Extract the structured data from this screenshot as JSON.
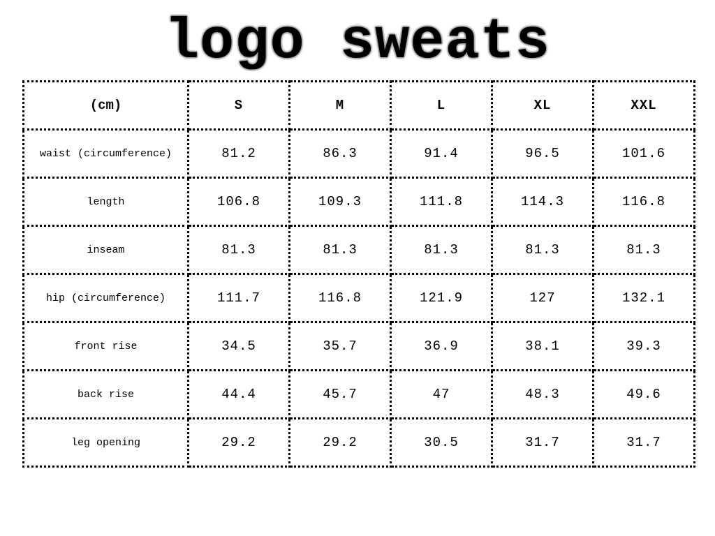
{
  "title": "logo sweats",
  "table": {
    "headers": [
      "(cm)",
      "S",
      "M",
      "L",
      "XL",
      "XXL"
    ],
    "rows": [
      {
        "label": "waist (circumference)",
        "values": [
          "81.2",
          "86.3",
          "91.4",
          "96.5",
          "101.6"
        ]
      },
      {
        "label": "length",
        "values": [
          "106.8",
          "109.3",
          "111.8",
          "114.3",
          "116.8"
        ]
      },
      {
        "label": "inseam",
        "values": [
          "81.3",
          "81.3",
          "81.3",
          "81.3",
          "81.3"
        ]
      },
      {
        "label": "hip (circumference)",
        "values": [
          "111.7",
          "116.8",
          "121.9",
          "127",
          "132.1"
        ]
      },
      {
        "label": "front rise",
        "values": [
          "34.5",
          "35.7",
          "36.9",
          "38.1",
          "39.3"
        ]
      },
      {
        "label": "back rise",
        "values": [
          "44.4",
          "45.7",
          "47",
          "48.3",
          "49.6"
        ]
      },
      {
        "label": "leg opening",
        "values": [
          "29.2",
          "29.2",
          "30.5",
          "31.7",
          "31.7"
        ]
      }
    ]
  }
}
